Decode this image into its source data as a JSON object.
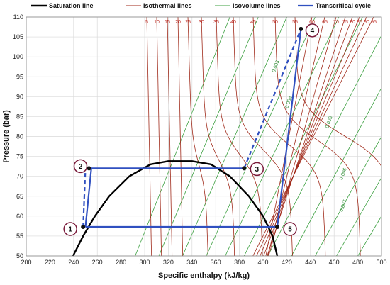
{
  "chart_data": {
    "type": "line",
    "title": "",
    "xlabel": "Specific enthalpy (kJ/kg)",
    "ylabel": "Pressure (bar)",
    "xlim": [
      200,
      500
    ],
    "ylim": [
      50,
      110
    ],
    "xticks": [
      "200",
      "220",
      "240",
      "260",
      "280",
      "300",
      "320",
      "340",
      "360",
      "380",
      "400",
      "420",
      "440",
      "460",
      "480",
      "500"
    ],
    "yticks": [
      "50",
      "55",
      "60",
      "65",
      "70",
      "75",
      "80",
      "85",
      "90",
      "95",
      "100",
      "105",
      "110"
    ],
    "grid": true,
    "legend": {
      "placement": "top",
      "entries": [
        "Saturation line",
        "Isothermal lines",
        "Isovolume lines",
        "Transcritical cycle"
      ]
    },
    "colors": {
      "saturation": "#000000",
      "isotherm": "#a02a1a",
      "isovolume": "#3ca040",
      "cycle": "#3050c0",
      "isotherm_label": "#c0302a",
      "isovolume_label": "#2a8a30"
    },
    "isotherm_labels": [
      "5",
      "10",
      "15",
      "20",
      "25",
      "30",
      "35",
      "40",
      "45",
      "50",
      "55",
      "60",
      "65",
      "70",
      "75",
      "80",
      "85",
      "90",
      "95"
    ],
    "isovolume_labels": [
      "0.003",
      "0.004",
      "0.005",
      "0.006",
      "0.007"
    ],
    "saturation_line": [
      [
        239.5,
        50
      ],
      [
        248,
        55
      ],
      [
        258,
        60
      ],
      [
        270,
        65
      ],
      [
        287,
        70
      ],
      [
        305,
        73
      ],
      [
        320,
        73.8
      ],
      [
        340,
        73.8
      ],
      [
        356,
        73
      ],
      [
        372,
        70
      ],
      [
        388,
        65
      ],
      [
        400,
        60
      ],
      [
        408,
        55
      ],
      [
        412,
        50
      ]
    ],
    "cycle_solid": [
      [
        248,
        57.3
      ],
      [
        412,
        57.3
      ],
      [
        432,
        107
      ],
      [
        413,
        57.3
      ]
    ],
    "cycle_segments": [
      {
        "style": "solid",
        "points": [
          [
            250,
            57.3
          ],
          [
            412,
            57.3
          ]
        ]
      },
      {
        "style": "dashed",
        "points": [
          [
            248,
            57.3
          ],
          [
            250,
            72
          ]
        ]
      },
      {
        "style": "solid",
        "points": [
          [
            250,
            72
          ],
          [
            255,
            72
          ],
          [
            250,
            57.3
          ]
        ]
      },
      {
        "style": "solid",
        "points": [
          [
            253,
            72
          ],
          [
            384,
            72
          ]
        ]
      },
      {
        "style": "dashed",
        "points": [
          [
            384,
            72
          ],
          [
            432,
            107
          ]
        ]
      },
      {
        "style": "solid",
        "points": [
          [
            432,
            107
          ],
          [
            412,
            57.3
          ]
        ]
      }
    ],
    "points": [
      {
        "label": "1",
        "x": 248,
        "y": 57.3
      },
      {
        "label": "2",
        "x": 253,
        "y": 72
      },
      {
        "label": "3",
        "x": 384,
        "y": 72
      },
      {
        "label": "4",
        "x": 432,
        "y": 107
      },
      {
        "label": "5",
        "x": 412,
        "y": 57.3
      }
    ]
  }
}
